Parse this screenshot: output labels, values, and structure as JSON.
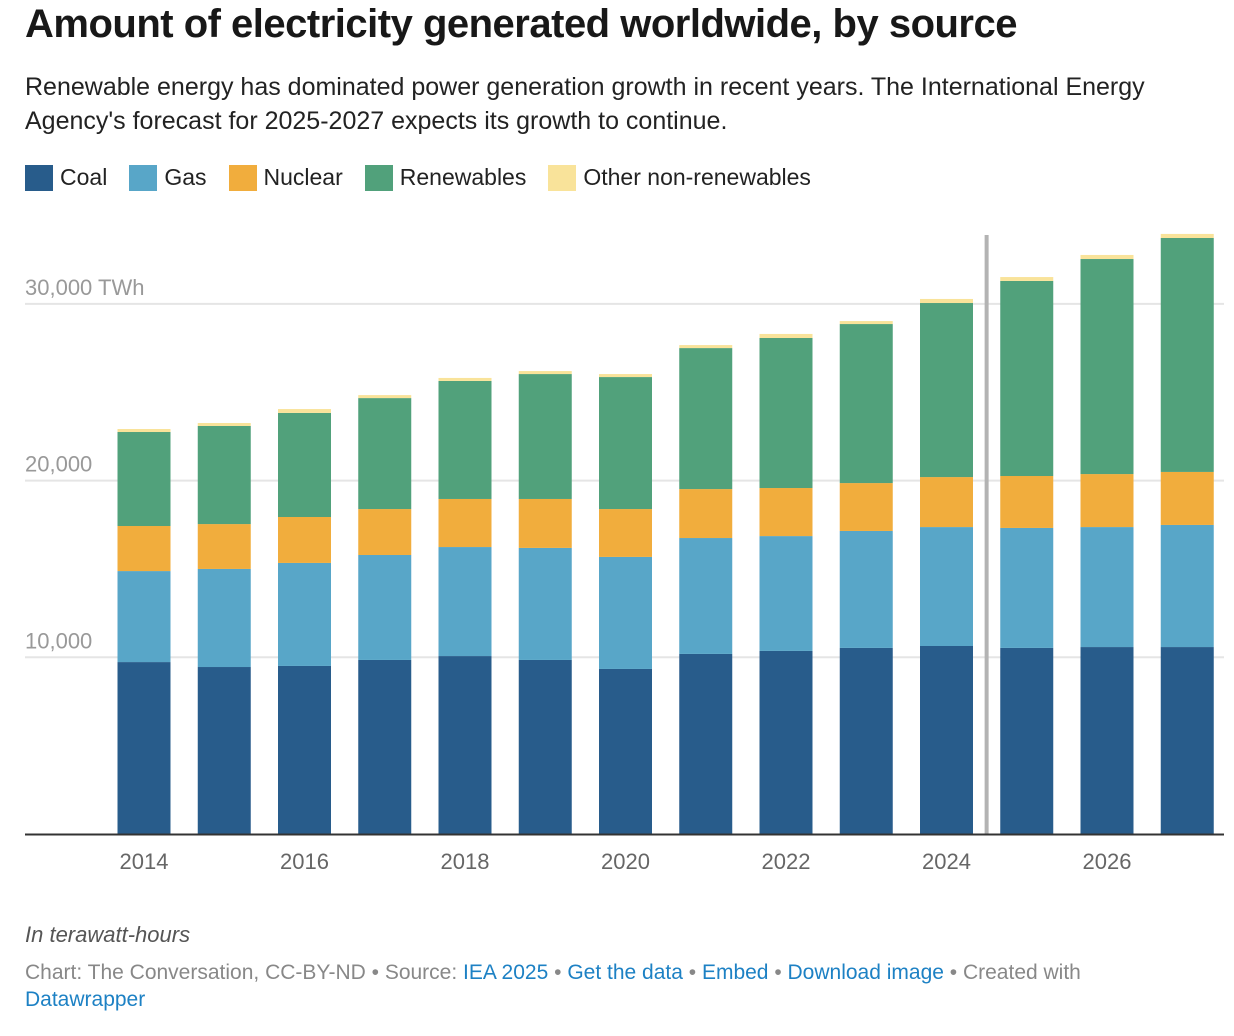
{
  "title": "Amount of electricity generated worldwide, by source",
  "subtitle": "Renewable energy has dominated power generation growth in recent years. The International Energy Agency's forecast for 2025-2027 expects its growth to continue.",
  "note": "In terawatt-hours",
  "footer": {
    "prefix": "Chart: The Conversation, CC-BY-ND • Source: ",
    "source": "IEA 2025",
    "sep1": " • ",
    "get_data": "Get the data",
    "sep2": " • ",
    "embed": "Embed",
    "sep3": "  • ",
    "download": "Download image",
    "sep4": " • Created with ",
    "datawrapper": "Datawrapper"
  },
  "chart_data": {
    "type": "bar",
    "stacked": true,
    "categories": [
      2014,
      2015,
      2016,
      2017,
      2018,
      2019,
      2020,
      2021,
      2022,
      2023,
      2024,
      2025,
      2026,
      2027
    ],
    "x_tick_labels": [
      "2014",
      "2016",
      "2018",
      "2020",
      "2022",
      "2024",
      "2026"
    ],
    "y_ticks": [
      {
        "value": 10000,
        "label": "10,000"
      },
      {
        "value": 20000,
        "label": "20,000"
      },
      {
        "value": 30000,
        "label": "30,000 TWh"
      }
    ],
    "ylim": [
      0,
      34000
    ],
    "grid": true,
    "legend": "top-left",
    "forecast_divider_after": 2024,
    "series": [
      {
        "name": "Coal",
        "color": "#285c8b",
        "values": [
          9730,
          9450,
          9510,
          9850,
          10070,
          9850,
          9340,
          10190,
          10360,
          10530,
          10640,
          10530,
          10580,
          10580
        ]
      },
      {
        "name": "Gas",
        "color": "#58a6c8",
        "values": [
          5150,
          5550,
          5830,
          5940,
          6170,
          6340,
          6340,
          6560,
          6500,
          6620,
          6730,
          6790,
          6790,
          6910
        ]
      },
      {
        "name": "Nuclear",
        "color": "#f1ad3d",
        "values": [
          2550,
          2540,
          2600,
          2600,
          2720,
          2770,
          2710,
          2770,
          2720,
          2710,
          2830,
          2940,
          3000,
          3000
        ]
      },
      {
        "name": "Renewables",
        "color": "#51a17b",
        "values": [
          5320,
          5550,
          5890,
          6280,
          6680,
          7070,
          7470,
          7980,
          8490,
          9000,
          9850,
          11040,
          12170,
          13240
        ]
      },
      {
        "name": "Other non-renewables",
        "color": "#f9e39a",
        "values": [
          170,
          170,
          220,
          170,
          170,
          170,
          170,
          170,
          230,
          170,
          230,
          220,
          230,
          230
        ]
      }
    ]
  }
}
